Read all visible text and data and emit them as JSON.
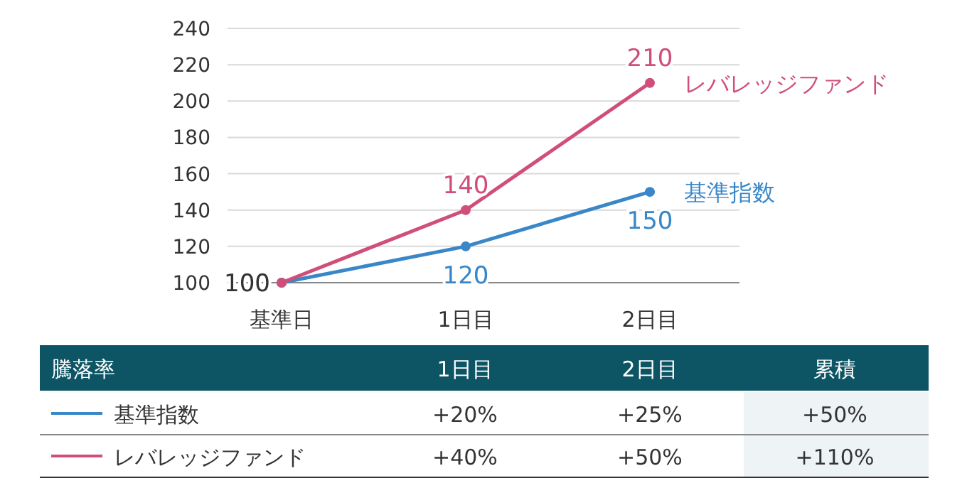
{
  "chart_data": {
    "type": "line",
    "categories": [
      "基準日",
      "1日目",
      "2日目"
    ],
    "series": [
      {
        "name": "基準指数",
        "color": "#3a87c8",
        "values": [
          100,
          120,
          150
        ],
        "value_labels": [
          "100",
          "120",
          "150"
        ]
      },
      {
        "name": "レバレッジファンド",
        "color": "#d04f78",
        "values": [
          100,
          140,
          210
        ],
        "value_labels": [
          null,
          "140",
          "210"
        ]
      }
    ],
    "ylim": [
      100,
      240
    ],
    "yticks": [
      100,
      120,
      140,
      160,
      180,
      200,
      220,
      240
    ],
    "grid": "y",
    "legend": "bottom",
    "marker": "circle",
    "line_style": "solid",
    "annotations": [
      "騰落率",
      "累積",
      "+20%",
      "+25%",
      "+50%",
      "+40%",
      "+50%",
      "+110%"
    ]
  }
}
